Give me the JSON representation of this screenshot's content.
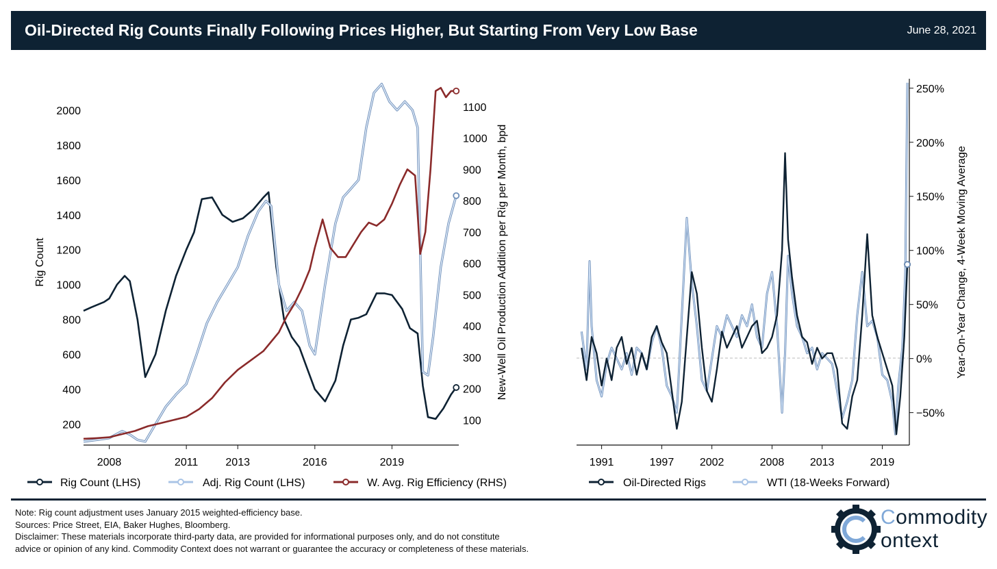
{
  "header": {
    "title": "Oil-Directed Rig Counts Finally Following Prices Higher, But Starting From Very Low Base",
    "date": "June 28, 2021"
  },
  "colors": {
    "navy": "#0e2233",
    "light_blue": "#a9c4e6",
    "dark_red": "#8a2a2a",
    "zero_line": "#bbbbbb"
  },
  "chart_data": [
    {
      "type": "line",
      "xlabel": "",
      "ylabel": "Rig Count",
      "y2label": "New-Well Oil Production Addition per Rig per Month, bpd",
      "x_ticks": [
        "2008",
        "2011",
        "2013",
        "2016",
        "2019"
      ],
      "x_tick_values": [
        2008,
        2011,
        2013,
        2016,
        2019
      ],
      "xlim": [
        2007.0,
        2021.6
      ],
      "ylim": [
        80,
        2200
      ],
      "y_ticks": [
        "200",
        "400",
        "600",
        "800",
        "1000",
        "1200",
        "1400",
        "1600",
        "1800",
        "2000"
      ],
      "y_tick_values": [
        200,
        400,
        600,
        800,
        1000,
        1200,
        1400,
        1600,
        1800,
        2000
      ],
      "y2lim": [
        20,
        1200
      ],
      "y2_ticks": [
        "100",
        "200",
        "300",
        "400",
        "500",
        "600",
        "700",
        "800",
        "900",
        "1000",
        "1100"
      ],
      "y2_tick_values": [
        100,
        200,
        300,
        400,
        500,
        600,
        700,
        800,
        900,
        1000,
        1100
      ],
      "legend_position": "bottom",
      "series": [
        {
          "name": "Rig Count (LHS)",
          "axis": "left",
          "color": "#0e2233",
          "x": [
            2007.0,
            2007.3,
            2007.8,
            2008.0,
            2008.3,
            2008.6,
            2008.8,
            2009.1,
            2009.4,
            2009.8,
            2010.2,
            2010.6,
            2011.0,
            2011.3,
            2011.6,
            2012.0,
            2012.4,
            2012.8,
            2013.2,
            2013.6,
            2014.0,
            2014.2,
            2014.5,
            2014.8,
            2015.1,
            2015.4,
            2015.7,
            2016.0,
            2016.4,
            2016.8,
            2017.1,
            2017.4,
            2017.7,
            2018.0,
            2018.4,
            2018.7,
            2019.0,
            2019.4,
            2019.7,
            2020.0,
            2020.2,
            2020.4,
            2020.7,
            2021.0,
            2021.3,
            2021.5
          ],
          "y": [
            850,
            870,
            900,
            920,
            1000,
            1050,
            1020,
            800,
            470,
            600,
            850,
            1050,
            1200,
            1300,
            1490,
            1500,
            1400,
            1360,
            1380,
            1430,
            1500,
            1530,
            1100,
            800,
            700,
            640,
            520,
            400,
            330,
            450,
            650,
            800,
            810,
            830,
            950,
            950,
            940,
            860,
            750,
            720,
            420,
            240,
            230,
            290,
            370,
            410
          ]
        },
        {
          "name": "Adj. Rig Count (LHS)",
          "axis": "left",
          "color": "#a9c4e6",
          "x": [
            2007.0,
            2007.5,
            2008.0,
            2008.5,
            2008.8,
            2009.1,
            2009.4,
            2009.8,
            2010.2,
            2010.6,
            2011.0,
            2011.4,
            2011.8,
            2012.2,
            2012.6,
            2013.0,
            2013.4,
            2013.8,
            2014.1,
            2014.3,
            2014.6,
            2014.9,
            2015.2,
            2015.5,
            2015.8,
            2016.0,
            2016.4,
            2016.8,
            2017.1,
            2017.4,
            2017.7,
            2018.0,
            2018.3,
            2018.6,
            2018.9,
            2019.2,
            2019.5,
            2019.8,
            2020.0,
            2020.2,
            2020.4,
            2020.6,
            2020.9,
            2021.2,
            2021.5
          ],
          "y": [
            100,
            110,
            120,
            160,
            140,
            110,
            100,
            200,
            300,
            370,
            430,
            600,
            780,
            900,
            1000,
            1100,
            1280,
            1420,
            1480,
            1450,
            1000,
            850,
            900,
            850,
            650,
            600,
            1000,
            1350,
            1500,
            1550,
            1600,
            1900,
            2100,
            2150,
            2050,
            2000,
            2050,
            2000,
            1900,
            500,
            480,
            700,
            1100,
            1350,
            1510
          ]
        },
        {
          "name": "W. Avg. Rig Efficiency (RHS)",
          "axis": "right",
          "color": "#8a2a2a",
          "x": [
            2007.0,
            2007.5,
            2008.0,
            2008.5,
            2009.0,
            2009.5,
            2010.0,
            2010.5,
            2011.0,
            2011.5,
            2012.0,
            2012.5,
            2013.0,
            2013.5,
            2014.0,
            2014.3,
            2014.6,
            2014.9,
            2015.2,
            2015.5,
            2015.8,
            2016.0,
            2016.3,
            2016.6,
            2016.9,
            2017.2,
            2017.5,
            2017.8,
            2018.1,
            2018.4,
            2018.7,
            2019.0,
            2019.3,
            2019.6,
            2019.9,
            2020.1,
            2020.3,
            2020.5,
            2020.7,
            2020.9,
            2021.1,
            2021.3,
            2021.5
          ],
          "y": [
            40,
            42,
            45,
            55,
            65,
            80,
            90,
            100,
            110,
            135,
            170,
            220,
            260,
            290,
            320,
            350,
            380,
            430,
            470,
            520,
            580,
            650,
            740,
            650,
            620,
            620,
            660,
            700,
            730,
            720,
            740,
            790,
            850,
            900,
            880,
            630,
            700,
            900,
            1150,
            1160,
            1130,
            1150,
            1150
          ]
        }
      ]
    },
    {
      "type": "line",
      "xlabel": "",
      "ylabel": "",
      "y2label": "Year-On-Year Change, 4-Week Moving Average",
      "x_ticks": [
        "1991",
        "1997",
        "2002",
        "2008",
        "2013",
        "2019"
      ],
      "x_tick_values": [
        1991,
        1997,
        2002,
        2008,
        2013,
        2019
      ],
      "xlim": [
        1988.5,
        2021.7
      ],
      "y2lim": [
        -80,
        260
      ],
      "y2_ticks": [
        "−50%",
        "0%",
        "50%",
        "100%",
        "150%",
        "200%",
        "250%"
      ],
      "y2_tick_values": [
        -50,
        0,
        50,
        100,
        150,
        200,
        250
      ],
      "grid": false,
      "legend_position": "bottom",
      "series": [
        {
          "name": "Oil-Directed Rigs",
          "color": "#0e2233",
          "x": [
            1989.0,
            1989.5,
            1990.0,
            1990.5,
            1991.0,
            1991.5,
            1992.0,
            1992.5,
            1993.0,
            1993.5,
            1994.0,
            1994.5,
            1995.0,
            1995.5,
            1996.0,
            1996.5,
            1997.0,
            1997.5,
            1998.0,
            1998.5,
            1999.0,
            1999.5,
            2000.0,
            2000.5,
            2001.0,
            2001.5,
            2002.0,
            2002.5,
            2003.0,
            2003.5,
            2004.0,
            2004.5,
            2005.0,
            2005.5,
            2006.0,
            2006.5,
            2007.0,
            2007.5,
            2008.0,
            2008.5,
            2009.0,
            2009.3,
            2009.6,
            2010.0,
            2010.5,
            2011.0,
            2011.5,
            2012.0,
            2012.5,
            2013.0,
            2013.5,
            2014.0,
            2014.5,
            2015.0,
            2015.5,
            2016.0,
            2016.5,
            2017.0,
            2017.5,
            2018.0,
            2018.5,
            2019.0,
            2019.5,
            2020.0,
            2020.4,
            2020.8,
            2021.2,
            2021.5
          ],
          "y": [
            10,
            -20,
            20,
            5,
            -25,
            0,
            -20,
            10,
            20,
            -5,
            10,
            -15,
            5,
            -10,
            20,
            30,
            15,
            5,
            -30,
            -65,
            -40,
            20,
            80,
            60,
            10,
            -30,
            -40,
            -10,
            25,
            10,
            20,
            30,
            10,
            20,
            30,
            35,
            5,
            10,
            20,
            40,
            100,
            190,
            110,
            75,
            40,
            20,
            15,
            -5,
            10,
            0,
            5,
            5,
            -10,
            -60,
            -65,
            -35,
            -20,
            40,
            115,
            40,
            20,
            5,
            -10,
            -25,
            -70,
            -35,
            20,
            87
          ]
        },
        {
          "name": "WTI (18-Weeks Forward)",
          "color": "#a9c4e6",
          "x": [
            1989.0,
            1989.5,
            1989.8,
            1990.0,
            1990.5,
            1991.0,
            1991.5,
            1992.0,
            1992.5,
            1993.0,
            1993.5,
            1994.0,
            1994.5,
            1995.0,
            1995.5,
            1996.0,
            1996.5,
            1997.0,
            1997.5,
            1998.0,
            1998.5,
            1999.0,
            1999.5,
            2000.0,
            2000.5,
            2001.0,
            2001.5,
            2002.0,
            2002.5,
            2003.0,
            2003.5,
            2004.0,
            2004.5,
            2005.0,
            2005.5,
            2006.0,
            2006.5,
            2007.0,
            2007.5,
            2008.0,
            2008.5,
            2009.0,
            2009.3,
            2009.6,
            2010.0,
            2010.5,
            2011.0,
            2011.5,
            2012.0,
            2012.5,
            2013.0,
            2013.5,
            2014.0,
            2014.5,
            2015.0,
            2015.5,
            2016.0,
            2016.5,
            2017.0,
            2017.5,
            2018.0,
            2018.5,
            2019.0,
            2019.5,
            2020.0,
            2020.3,
            2020.6,
            2021.0,
            2021.3,
            2021.5
          ],
          "y": [
            25,
            -10,
            90,
            30,
            -20,
            -35,
            -5,
            10,
            0,
            -10,
            5,
            -15,
            10,
            5,
            -10,
            15,
            30,
            10,
            -25,
            -35,
            -50,
            40,
            130,
            70,
            30,
            -20,
            -30,
            0,
            30,
            20,
            40,
            30,
            20,
            40,
            30,
            50,
            20,
            10,
            60,
            80,
            30,
            -50,
            5,
            95,
            60,
            30,
            20,
            5,
            10,
            -10,
            5,
            0,
            -5,
            -30,
            -55,
            -40,
            -20,
            40,
            80,
            30,
            35,
            20,
            -15,
            -20,
            -40,
            -70,
            -25,
            10,
            80,
            255
          ]
        }
      ]
    }
  ],
  "legend_left": [
    {
      "label": "Rig Count (LHS)",
      "color": "#0e2233"
    },
    {
      "label": "Adj. Rig Count (LHS)",
      "color": "#a9c4e6"
    },
    {
      "label": "W. Avg. Rig Efficiency (RHS)",
      "color": "#8a2a2a"
    }
  ],
  "legend_right": [
    {
      "label": "Oil-Directed Rigs",
      "color": "#0e2233"
    },
    {
      "label": "WTI (18-Weeks Forward)",
      "color": "#a9c4e6"
    }
  ],
  "notes": {
    "line1": "Note: Rig count adjustment uses January 2015 weighted-efficiency base.",
    "line2": "Sources: Price Street, EIA, Baker Hughes, Bloomberg.",
    "line3": "Disclaimer: These materials incorporate third-party data, are provided for informational purposes only, and do not constitute",
    "line4": "advice or opinion of any kind. Commodity Context does not warrant or guarantee the accuracy or completeness of these materials."
  },
  "logo": {
    "line1_first": "C",
    "line1_rest": "ommodity",
    "line2": "ontext"
  }
}
